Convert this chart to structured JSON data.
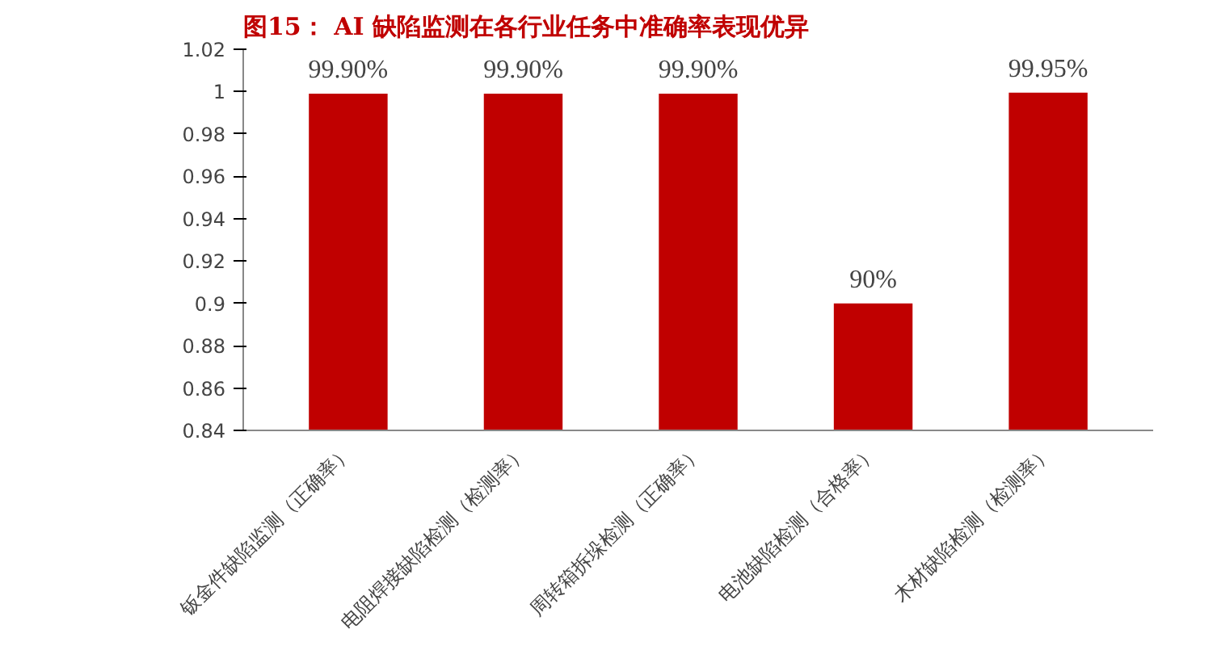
{
  "chart_data": {
    "type": "bar",
    "title": "图15：  AI 缺陷监测在各行业任务中准确率表现优异",
    "categories": [
      "钣金件缺陷监测（正确率）",
      "电阻焊接缺陷检测（检测率）",
      "周转箱拆垛检测（正确率）",
      "电池缺陷检测（合格率）",
      "木材缺陷检测（检测率）"
    ],
    "values": [
      0.999,
      0.999,
      0.999,
      0.9,
      0.9995
    ],
    "value_labels": [
      "99.90%",
      "99.90%",
      "99.90%",
      "90%",
      "99.95%"
    ],
    "color": "#c00000",
    "ylim": [
      0.84,
      1.02
    ],
    "yticks": [
      0.84,
      0.86,
      0.88,
      0.9,
      0.92,
      0.94,
      0.96,
      0.98,
      {
        "value": 1,
        "label": "1"
      },
      1.02
    ],
    "grid": false
  }
}
